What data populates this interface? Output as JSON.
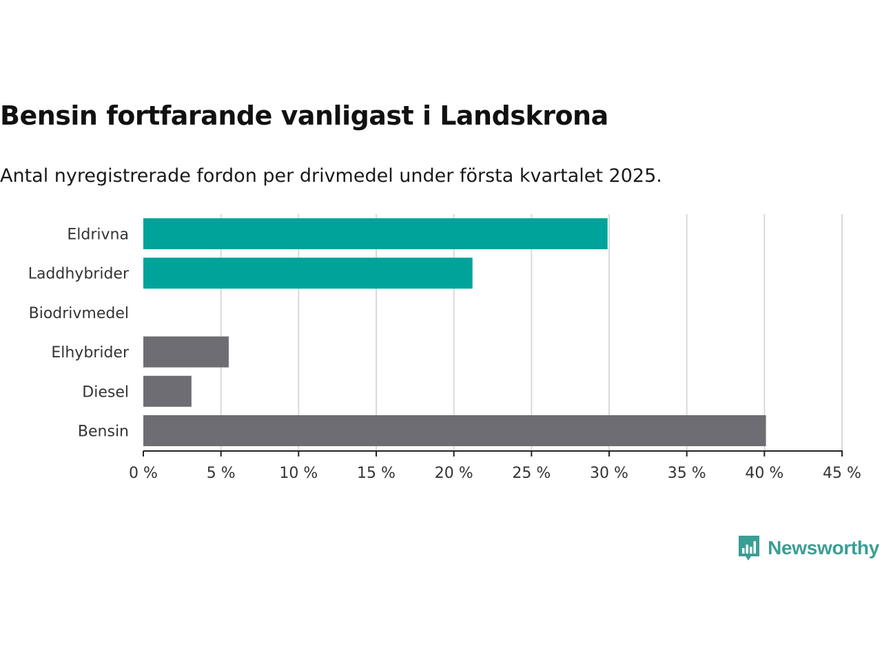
{
  "title": "Bensin fortfarande vanligast i Landskrona",
  "subtitle": "Antal nyregistrerade fordon per drivmedel under första kvartalet 2025.",
  "brand": {
    "name": "Newsworthy",
    "color": "#3a9e94",
    "icon": "bar-chart-bubble-icon"
  },
  "colors": {
    "highlight": "#00a39a",
    "base": "#6e6d73",
    "grid": "#d9d9d9",
    "axis": "#222222"
  },
  "chart_data": {
    "type": "bar",
    "orientation": "horizontal",
    "categories": [
      "Eldrivna",
      "Laddhybrider",
      "Biodrivmedel",
      "Elhybrider",
      "Diesel",
      "Bensin"
    ],
    "values": [
      29.9,
      21.2,
      0,
      5.5,
      3.1,
      40.1
    ],
    "bar_colors": [
      "highlight",
      "highlight",
      "base",
      "base",
      "base",
      "base"
    ],
    "xlim": [
      0,
      45
    ],
    "ticks": [
      0,
      5,
      10,
      15,
      20,
      25,
      30,
      35,
      40,
      45
    ],
    "tick_labels": [
      "0 %",
      "5 %",
      "10 %",
      "15 %",
      "20 %",
      "25 %",
      "30 %",
      "35 %",
      "40 %",
      "45 %"
    ],
    "grid": true,
    "legend": "none",
    "title": "Bensin fortfarande vanligast i Landskrona",
    "subtitle": "Antal nyregistrerade fordon per drivmedel under första kvartalet 2025.",
    "xlabel": "",
    "ylabel": ""
  }
}
